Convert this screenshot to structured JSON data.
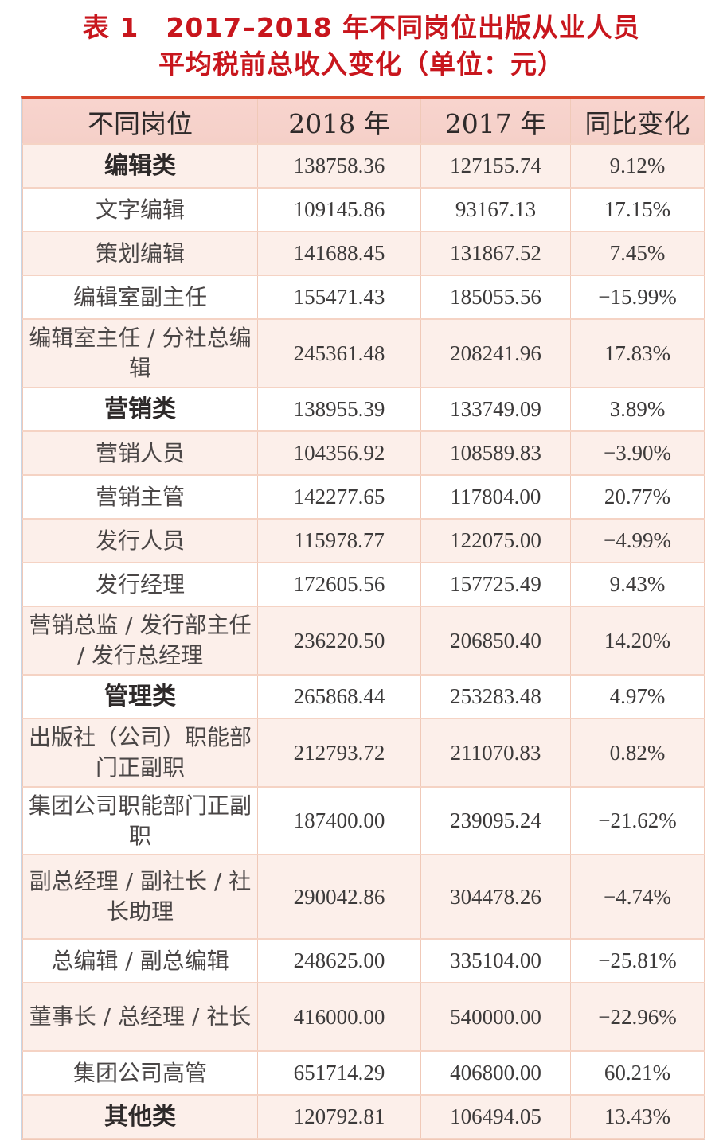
{
  "title": {
    "line1": "表 1　2017–2018 年不同岗位出版从业人员",
    "line2": "平均税前总收入变化（单位：元）"
  },
  "colors": {
    "title": "#c8161d",
    "table_top_border": "#d9472b",
    "header_bg": "#f8d4ce",
    "row_alt_bg": "#fcefea",
    "grid_line": "#f0c9b8"
  },
  "table": {
    "headers": [
      "不同岗位",
      "2018 年",
      "2017 年",
      "同比变化"
    ],
    "rows": [
      {
        "position": "编辑类",
        "y2018": "138758.36",
        "y2017": "127155.74",
        "change": "9.12%",
        "category": true
      },
      {
        "position": "文字编辑",
        "y2018": "109145.86",
        "y2017": "93167.13",
        "change": "17.15%"
      },
      {
        "position": "策划编辑",
        "y2018": "141688.45",
        "y2017": "131867.52",
        "change": "7.45%"
      },
      {
        "position": "编辑室副主任",
        "y2018": "155471.43",
        "y2017": "185055.56",
        "change": "−15.99%"
      },
      {
        "position": "编辑室主任 / 分社总编辑",
        "y2018": "245361.48",
        "y2017": "208241.96",
        "change": "17.83%"
      },
      {
        "position": "营销类",
        "y2018": "138955.39",
        "y2017": "133749.09",
        "change": "3.89%",
        "category": true
      },
      {
        "position": "营销人员",
        "y2018": "104356.92",
        "y2017": "108589.83",
        "change": "−3.90%"
      },
      {
        "position": "营销主管",
        "y2018": "142277.65",
        "y2017": "117804.00",
        "change": "20.77%"
      },
      {
        "position": "发行人员",
        "y2018": "115978.77",
        "y2017": "122075.00",
        "change": "−4.99%"
      },
      {
        "position": "发行经理",
        "y2018": "172605.56",
        "y2017": "157725.49",
        "change": "9.43%"
      },
      {
        "position": "营销总监 / 发行部主任 / 发行总经理",
        "y2018": "236220.50",
        "y2017": "206850.40",
        "change": "14.20%"
      },
      {
        "position": "管理类",
        "y2018": "265868.44",
        "y2017": "253283.48",
        "change": "4.97%",
        "category": true
      },
      {
        "position": "出版社（公司）职能部门正副职",
        "y2018": "212793.72",
        "y2017": "211070.83",
        "change": "0.82%"
      },
      {
        "position": "集团公司职能部门正副职",
        "y2018": "187400.00",
        "y2017": "239095.24",
        "change": "−21.62%"
      },
      {
        "position": "副总经理 / 副社长 / 社长助理",
        "y2018": "290042.86",
        "y2017": "304478.26",
        "change": "−4.74%"
      },
      {
        "position": "总编辑 / 副总编辑",
        "y2018": "248625.00",
        "y2017": "335104.00",
        "change": "−25.81%"
      },
      {
        "position": "董事长 / 总经理 / 社长",
        "y2018": "416000.00",
        "y2017": "540000.00",
        "change": "−22.96%"
      },
      {
        "position": "集团公司高管",
        "y2018": "651714.29",
        "y2017": "406800.00",
        "change": "60.21%"
      },
      {
        "position": "其他类",
        "y2018": "120792.81",
        "y2017": "106494.05",
        "change": "13.43%",
        "category": true
      }
    ]
  }
}
